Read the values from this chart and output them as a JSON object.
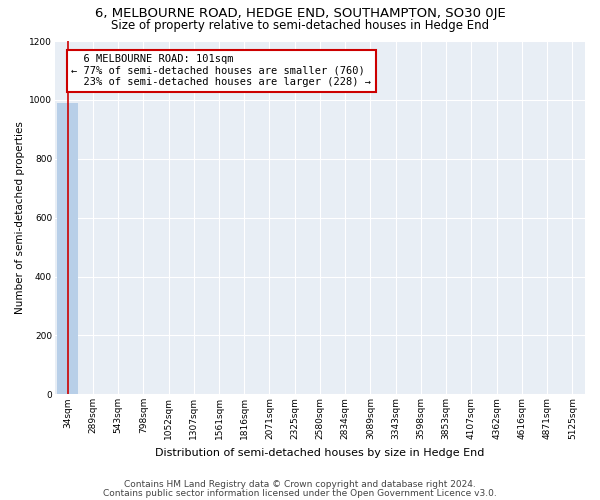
{
  "title": "6, MELBOURNE ROAD, HEDGE END, SOUTHAMPTON, SO30 0JE",
  "subtitle": "Size of property relative to semi-detached houses in Hedge End",
  "xlabel": "Distribution of semi-detached houses by size in Hedge End",
  "ylabel": "Number of semi-detached properties",
  "footnote1": "Contains HM Land Registry data © Crown copyright and database right 2024.",
  "footnote2": "Contains public sector information licensed under the Open Government Licence v3.0.",
  "bin_labels": [
    "34sqm",
    "289sqm",
    "543sqm",
    "798sqm",
    "1052sqm",
    "1307sqm",
    "1561sqm",
    "1816sqm",
    "2071sqm",
    "2325sqm",
    "2580sqm",
    "2834sqm",
    "3089sqm",
    "3343sqm",
    "3598sqm",
    "3853sqm",
    "4107sqm",
    "4362sqm",
    "4616sqm",
    "4871sqm",
    "5125sqm"
  ],
  "bar_heights": [
    988,
    0,
    0,
    0,
    0,
    0,
    0,
    0,
    0,
    0,
    0,
    0,
    0,
    0,
    0,
    0,
    0,
    0,
    0,
    0,
    0
  ],
  "bar_color": "#b8cfe8",
  "ylim": [
    0,
    1200
  ],
  "yticks": [
    0,
    200,
    400,
    600,
    800,
    1000,
    1200
  ],
  "property_label": "6 MELBOURNE ROAD: 101sqm",
  "pct_smaller": 77,
  "count_smaller": 760,
  "pct_larger": 23,
  "count_larger": 228,
  "marker_bin_index": 0,
  "annotation_box_facecolor": "#ffffff",
  "annotation_box_edgecolor": "#cc0000",
  "plot_bg_color": "#e8eef5",
  "grid_color": "#ffffff",
  "title_fontsize": 9.5,
  "subtitle_fontsize": 8.5,
  "xlabel_fontsize": 8,
  "ylabel_fontsize": 7.5,
  "tick_fontsize": 6.5,
  "annotation_fontsize": 7.5,
  "footnote_fontsize": 6.5
}
